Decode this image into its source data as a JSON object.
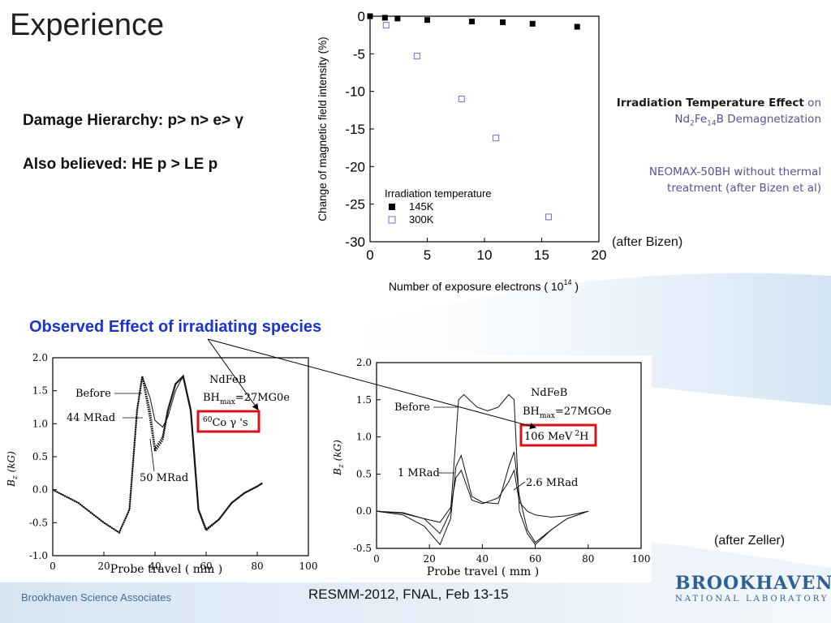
{
  "slide": {
    "title": "Experience",
    "damage_line": "Damage Hierarchy: p> n> e> γ",
    "believed_line": "Also believed: HE p > LE p",
    "side_note1_bold": "Irradiation Temperature Effect",
    "side_note1_on": " on",
    "side_note1_line2": "Nd2Fe14B Demagnetization",
    "side_note2_line1": "NEOMAX-50BH without thermal",
    "side_note2_line2": "treatment (after Bizen et al)",
    "after_bizen": "(after Bizen)",
    "observed_label": "Observed Effect of irradiating species",
    "after_zeller": "(after Zeller)",
    "footer_left": "Brookhaven Science Associates",
    "footer_center": "RESMM-2012, FNAL, Feb 13-15",
    "logo_main": "BROOKHAVEN",
    "logo_sub": "NATIONAL LABORATORY"
  },
  "chart_data": [
    {
      "type": "scatter",
      "xlabel": "Number of exposure electrons ( 10^14 )",
      "ylabel": "Change of magnetic field intensity (%)",
      "xlim": [
        0,
        20
      ],
      "ylim": [
        -30,
        0
      ],
      "xticks": [
        "0",
        "5",
        "10",
        "15",
        "20"
      ],
      "yticks": [
        "0",
        "-5",
        "-10",
        "-15",
        "-20",
        "-25",
        "-30"
      ],
      "legend_title": "Irradiation temperature",
      "series": [
        {
          "name": "145K",
          "marker": "filled-square",
          "color": "#000000",
          "x": [
            0,
            1.3,
            2.4,
            5.0,
            8.9,
            11.6,
            14.2,
            18.1
          ],
          "y": [
            0,
            -0.2,
            -0.3,
            -0.5,
            -0.7,
            -0.8,
            -1.0,
            -1.4
          ]
        },
        {
          "name": "300K",
          "marker": "open-square",
          "color": "#6b6fd6",
          "x": [
            1.4,
            4.1,
            8.0,
            11.0,
            15.6
          ],
          "y": [
            -1.2,
            -5.3,
            -11.0,
            -16.2,
            -26.7
          ]
        }
      ]
    },
    {
      "type": "line",
      "xlabel": "Probe travel ( mm )",
      "ylabel": "Bz (kG)",
      "xlim": [
        0,
        100
      ],
      "ylim": [
        -1.0,
        2.0
      ],
      "xticks": [
        "0",
        "20",
        "40",
        "60",
        "80",
        "100"
      ],
      "yticks": [
        "2.0",
        "1.5",
        "1.0",
        "0.5",
        "0.0",
        "-0.5",
        "-1.0"
      ],
      "annotations": [
        "NdFeB",
        "BH",
        "max",
        "=27MG0e",
        "60",
        "Co γ 's",
        "Before",
        "44 MRad",
        "50 MRad"
      ],
      "series": [
        {
          "name": "Before",
          "x": [
            0,
            10,
            20,
            26,
            30,
            33,
            35,
            38,
            40,
            43,
            45,
            48,
            51,
            54,
            57,
            60,
            65,
            70,
            75,
            80,
            82
          ],
          "y": [
            0.0,
            -0.2,
            -0.5,
            -0.65,
            -0.3,
            1.2,
            1.72,
            1.4,
            1.05,
            0.95,
            1.1,
            1.5,
            1.72,
            1.2,
            -0.3,
            -0.6,
            -0.45,
            -0.2,
            -0.05,
            0.05,
            0.1
          ]
        },
        {
          "name": "44 MRad",
          "x": [
            0,
            10,
            20,
            26,
            30,
            33,
            35,
            38,
            40,
            43,
            45,
            48,
            51,
            54,
            57,
            60,
            65,
            70,
            75,
            80,
            82
          ],
          "y": [
            0.0,
            -0.2,
            -0.5,
            -0.65,
            -0.3,
            1.2,
            1.72,
            1.2,
            0.62,
            0.8,
            1.2,
            1.6,
            1.72,
            1.2,
            -0.3,
            -0.6,
            -0.45,
            -0.2,
            -0.05,
            0.05,
            0.1
          ]
        },
        {
          "name": "50 MRad",
          "x": [
            0,
            10,
            20,
            26,
            30,
            33,
            35,
            38,
            40,
            43,
            45,
            48,
            51,
            54,
            57,
            60,
            65,
            70,
            75,
            80,
            82
          ],
          "y": [
            0.0,
            -0.2,
            -0.5,
            -0.65,
            -0.3,
            1.2,
            1.72,
            1.1,
            0.58,
            0.75,
            1.2,
            1.6,
            1.72,
            1.2,
            -0.3,
            -0.62,
            -0.45,
            -0.2,
            -0.05,
            0.05,
            0.1
          ]
        }
      ]
    },
    {
      "type": "line",
      "xlabel": "Probe travel ( mm )",
      "ylabel": "Bz (kG)",
      "xlim": [
        0,
        100
      ],
      "ylim": [
        -0.5,
        2.0
      ],
      "xticks": [
        "0",
        "20",
        "40",
        "60",
        "80",
        "100"
      ],
      "yticks": [
        "2.0",
        "1.5",
        "1.0",
        "0.5",
        "0.0",
        "-0.5"
      ],
      "annotations": [
        "NdFeB",
        "BH",
        "max",
        "=27MGOe",
        "106 MeV",
        "2",
        "H",
        "Before",
        "1 MRad",
        "2.6 MRad"
      ],
      "series": [
        {
          "name": "Before",
          "x": [
            0,
            10,
            18,
            24,
            28,
            31,
            33,
            38,
            42,
            46,
            50,
            52,
            54,
            57,
            60,
            66,
            72,
            80
          ],
          "y": [
            0.0,
            -0.02,
            -0.1,
            -0.3,
            0.0,
            1.5,
            1.57,
            1.4,
            1.35,
            1.4,
            1.57,
            1.5,
            0.0,
            -0.3,
            -0.45,
            -0.25,
            -0.1,
            0.0
          ]
        },
        {
          "name": "1 MRad",
          "x": [
            0,
            10,
            18,
            24,
            28,
            30,
            32,
            36,
            40,
            46,
            50,
            52,
            54,
            57,
            60,
            66,
            72,
            80
          ],
          "y": [
            0.0,
            -0.05,
            -0.2,
            -0.45,
            -0.1,
            0.6,
            0.75,
            0.2,
            0.12,
            0.1,
            0.6,
            0.8,
            0.2,
            -0.25,
            -0.42,
            -0.25,
            -0.1,
            0.0
          ]
        },
        {
          "name": "2.6 MRad",
          "x": [
            0,
            10,
            18,
            24,
            28,
            30,
            32,
            36,
            40,
            46,
            50,
            52,
            54,
            57,
            60,
            66,
            72,
            80
          ],
          "y": [
            0.0,
            -0.03,
            -0.1,
            -0.15,
            0.05,
            0.45,
            0.55,
            0.15,
            0.1,
            0.18,
            0.4,
            0.55,
            0.12,
            0.0,
            -0.05,
            -0.08,
            -0.06,
            0.0
          ]
        }
      ]
    }
  ]
}
